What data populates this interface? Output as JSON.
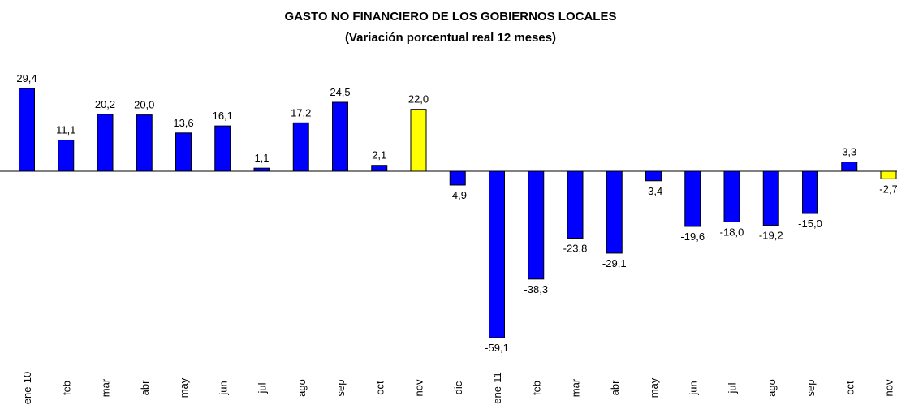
{
  "chart_data": {
    "type": "bar",
    "title": "GASTO NO FINANCIERO DE LOS GOBIERNOS LOCALES",
    "subtitle": "(Variación porcentual real 12 meses)",
    "categories": [
      "ene-10",
      "feb",
      "mar",
      "abr",
      "may",
      "jun",
      "jul",
      "ago",
      "sep",
      "oct",
      "nov",
      "dic",
      "ene-11",
      "feb",
      "mar",
      "abr",
      "may",
      "jun",
      "jul",
      "ago",
      "sep",
      "oct",
      "nov"
    ],
    "values": [
      29.4,
      11.1,
      20.2,
      20.0,
      13.6,
      16.1,
      1.1,
      17.2,
      24.5,
      2.1,
      22.0,
      -4.9,
      -59.1,
      -38.3,
      -23.8,
      -29.1,
      -3.4,
      -19.6,
      -18.0,
      -19.2,
      -15.0,
      3.3,
      -2.7
    ],
    "value_labels": [
      "29,4",
      "11,1",
      "20,2",
      "20,0",
      "13,6",
      "16,1",
      "1,1",
      "17,2",
      "24,5",
      "2,1",
      "22,0",
      "-4,9",
      "-59,1",
      "-38,3",
      "-23,8",
      "-29,1",
      "-3,4",
      "-19,6",
      "-18,0",
      "-19,2",
      "-15,0",
      "3,3",
      "-2,7"
    ],
    "colors": [
      "#0000ff",
      "#0000ff",
      "#0000ff",
      "#0000ff",
      "#0000ff",
      "#0000ff",
      "#0000ff",
      "#0000ff",
      "#0000ff",
      "#0000ff",
      "#ffff00",
      "#0000ff",
      "#0000ff",
      "#0000ff",
      "#0000ff",
      "#0000ff",
      "#0000ff",
      "#0000ff",
      "#0000ff",
      "#0000ff",
      "#0000ff",
      "#0000ff",
      "#ffff00"
    ]
  }
}
